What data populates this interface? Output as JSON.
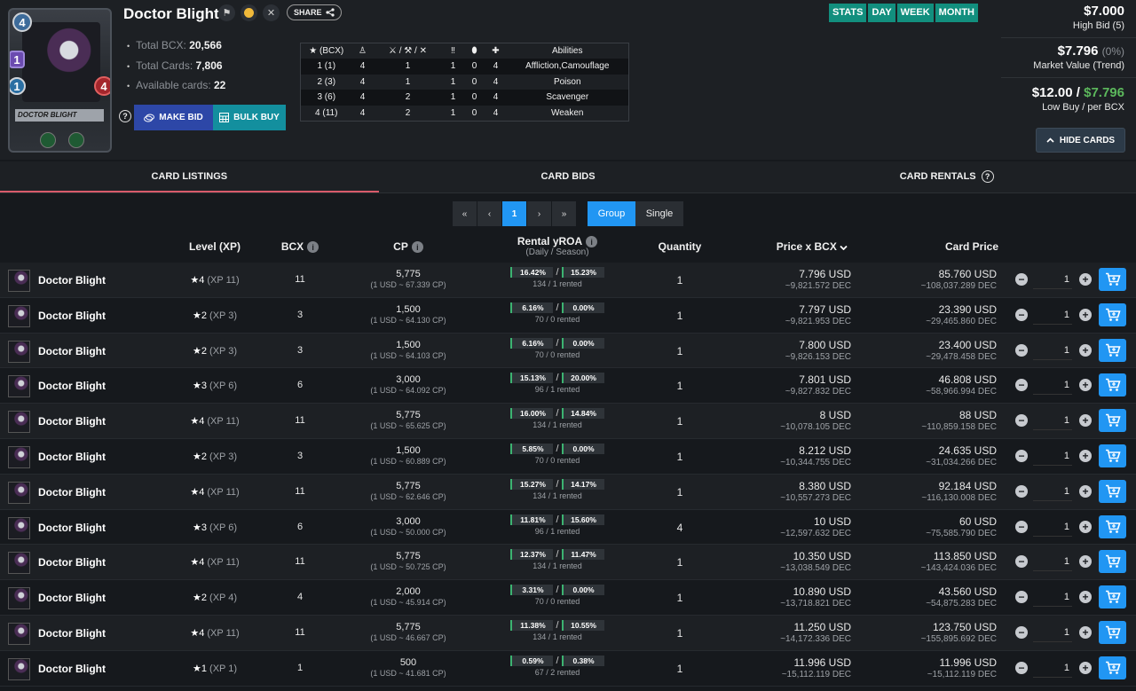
{
  "card": {
    "name": "Doctor Blight",
    "image_label": "DOCTOR BLIGHT",
    "mana": "4",
    "speed": "1",
    "armor": "1",
    "health": "4",
    "level_badge": "1"
  },
  "header": {
    "share_label": "SHARE",
    "stats": [
      {
        "label": "Total BCX:",
        "value": "20,566"
      },
      {
        "label": "Total Cards:",
        "value": "7,806"
      },
      {
        "label": "Available cards:",
        "value": "22"
      }
    ],
    "make_bid_label": "MAKE BID",
    "bulk_buy_label": "BULK BUY",
    "help_glyph": "?"
  },
  "level_table": {
    "headers": [
      "(BCX)",
      "Abilities"
    ],
    "rows": [
      {
        "level": "1 (1)",
        "a": "4",
        "b": "1",
        "c": "1",
        "d": "0",
        "e": "4",
        "ability": "Affliction,Camouflage"
      },
      {
        "level": "2 (3)",
        "a": "4",
        "b": "1",
        "c": "1",
        "d": "0",
        "e": "4",
        "ability": "Poison"
      },
      {
        "level": "3 (6)",
        "a": "4",
        "b": "2",
        "c": "1",
        "d": "0",
        "e": "4",
        "ability": "Scavenger"
      },
      {
        "level": "4 (11)",
        "a": "4",
        "b": "2",
        "c": "1",
        "d": "0",
        "e": "4",
        "ability": "Weaken"
      }
    ]
  },
  "periods": [
    "STATS",
    "DAY",
    "WEEK",
    "MONTH"
  ],
  "market": {
    "high_bid": "$7.000",
    "high_bid_label": "High Bid (5)",
    "market_value": "$7.796",
    "market_change": "(0%)",
    "market_value_label": "Market Value (Trend)",
    "low_buy": "$12.00",
    "per_bcx": "$7.796",
    "low_buy_label": "Low Buy / per BCX",
    "hide_cards_label": "HIDE CARDS"
  },
  "tabs": [
    "CARD LISTINGS",
    "CARD BIDS",
    "CARD RENTALS"
  ],
  "pager": {
    "first": "«",
    "prev": "‹",
    "current": "1",
    "next": "›",
    "last": "»"
  },
  "view_modes": [
    "Group",
    "Single"
  ],
  "columns": {
    "level": "Level (XP)",
    "bcx": "BCX",
    "cp": "CP",
    "roa": "Rental yROA",
    "roa_sub": "(Daily / Season)",
    "quantity": "Quantity",
    "price": "Price x BCX",
    "card_price": "Card Price"
  },
  "listings": [
    {
      "name": "Doctor Blight",
      "level": "4",
      "xp": "(XP 11)",
      "bcx": "11",
      "cp": "5,775",
      "cp_rate": "(1 USD ~ 67.339 CP)",
      "daily": "16.42%",
      "season": "15.23%",
      "rented": "134 / 1 rented",
      "qty": "1",
      "price": "7.796 USD",
      "price_dec": "~9,821.572 DEC",
      "card_price": "85.760 USD",
      "card_dec": "~108,037.289 DEC",
      "buy_qty": "1"
    },
    {
      "name": "Doctor Blight",
      "level": "2",
      "xp": "(XP 3)",
      "bcx": "3",
      "cp": "1,500",
      "cp_rate": "(1 USD ~ 64.130 CP)",
      "daily": "6.16%",
      "season": "0.00%",
      "rented": "70 / 0 rented",
      "qty": "1",
      "price": "7.797 USD",
      "price_dec": "~9,821.953 DEC",
      "card_price": "23.390 USD",
      "card_dec": "~29,465.860 DEC",
      "buy_qty": "1"
    },
    {
      "name": "Doctor Blight",
      "level": "2",
      "xp": "(XP 3)",
      "bcx": "3",
      "cp": "1,500",
      "cp_rate": "(1 USD ~ 64.103 CP)",
      "daily": "6.16%",
      "season": "0.00%",
      "rented": "70 / 0 rented",
      "qty": "1",
      "price": "7.800 USD",
      "price_dec": "~9,826.153 DEC",
      "card_price": "23.400 USD",
      "card_dec": "~29,478.458 DEC",
      "buy_qty": "1"
    },
    {
      "name": "Doctor Blight",
      "level": "3",
      "xp": "(XP 6)",
      "bcx": "6",
      "cp": "3,000",
      "cp_rate": "(1 USD ~ 64.092 CP)",
      "daily": "15.13%",
      "season": "20.00%",
      "rented": "96 / 1 rented",
      "qty": "1",
      "price": "7.801 USD",
      "price_dec": "~9,827.832 DEC",
      "card_price": "46.808 USD",
      "card_dec": "~58,966.994 DEC",
      "buy_qty": "1"
    },
    {
      "name": "Doctor Blight",
      "level": "4",
      "xp": "(XP 11)",
      "bcx": "11",
      "cp": "5,775",
      "cp_rate": "(1 USD ~ 65.625 CP)",
      "daily": "16.00%",
      "season": "14.84%",
      "rented": "134 / 1 rented",
      "qty": "1",
      "price": "8 USD",
      "price_dec": "~10,078.105 DEC",
      "card_price": "88 USD",
      "card_dec": "~110,859.158 DEC",
      "buy_qty": "1"
    },
    {
      "name": "Doctor Blight",
      "level": "2",
      "xp": "(XP 3)",
      "bcx": "3",
      "cp": "1,500",
      "cp_rate": "(1 USD ~ 60.889 CP)",
      "daily": "5.85%",
      "season": "0.00%",
      "rented": "70 / 0 rented",
      "qty": "1",
      "price": "8.212 USD",
      "price_dec": "~10,344.755 DEC",
      "card_price": "24.635 USD",
      "card_dec": "~31,034.266 DEC",
      "buy_qty": "1"
    },
    {
      "name": "Doctor Blight",
      "level": "4",
      "xp": "(XP 11)",
      "bcx": "11",
      "cp": "5,775",
      "cp_rate": "(1 USD ~ 62.646 CP)",
      "daily": "15.27%",
      "season": "14.17%",
      "rented": "134 / 1 rented",
      "qty": "1",
      "price": "8.380 USD",
      "price_dec": "~10,557.273 DEC",
      "card_price": "92.184 USD",
      "card_dec": "~116,130.008 DEC",
      "buy_qty": "1"
    },
    {
      "name": "Doctor Blight",
      "level": "3",
      "xp": "(XP 6)",
      "bcx": "6",
      "cp": "3,000",
      "cp_rate": "(1 USD ~ 50.000 CP)",
      "daily": "11.81%",
      "season": "15.60%",
      "rented": "96 / 1 rented",
      "qty": "4",
      "price": "10 USD",
      "price_dec": "~12,597.632 DEC",
      "card_price": "60 USD",
      "card_dec": "~75,585.790 DEC",
      "buy_qty": "1"
    },
    {
      "name": "Doctor Blight",
      "level": "4",
      "xp": "(XP 11)",
      "bcx": "11",
      "cp": "5,775",
      "cp_rate": "(1 USD ~ 50.725 CP)",
      "daily": "12.37%",
      "season": "11.47%",
      "rented": "134 / 1 rented",
      "qty": "1",
      "price": "10.350 USD",
      "price_dec": "~13,038.549 DEC",
      "card_price": "113.850 USD",
      "card_dec": "~143,424.036 DEC",
      "buy_qty": "1"
    },
    {
      "name": "Doctor Blight",
      "level": "2",
      "xp": "(XP 4)",
      "bcx": "4",
      "cp": "2,000",
      "cp_rate": "(1 USD ~ 45.914 CP)",
      "daily": "3.31%",
      "season": "0.00%",
      "rented": "70 / 0 rented",
      "qty": "1",
      "price": "10.890 USD",
      "price_dec": "~13,718.821 DEC",
      "card_price": "43.560 USD",
      "card_dec": "~54,875.283 DEC",
      "buy_qty": "1"
    },
    {
      "name": "Doctor Blight",
      "level": "4",
      "xp": "(XP 11)",
      "bcx": "11",
      "cp": "5,775",
      "cp_rate": "(1 USD ~ 46.667 CP)",
      "daily": "11.38%",
      "season": "10.55%",
      "rented": "134 / 1 rented",
      "qty": "1",
      "price": "11.250 USD",
      "price_dec": "~14,172.336 DEC",
      "card_price": "123.750 USD",
      "card_dec": "~155,895.692 DEC",
      "buy_qty": "1"
    },
    {
      "name": "Doctor Blight",
      "level": "1",
      "xp": "(XP 1)",
      "bcx": "1",
      "cp": "500",
      "cp_rate": "(1 USD ~ 41.681 CP)",
      "daily": "0.59%",
      "season": "0.38%",
      "rented": "67 / 2 rented",
      "qty": "1",
      "price": "11.996 USD",
      "price_dec": "~15,112.119 DEC",
      "card_price": "11.996 USD",
      "card_dec": "~15,112.119 DEC",
      "buy_qty": "1"
    }
  ],
  "colors": {
    "accent_blue": "#2196f3",
    "teal": "#128f7e",
    "green_value": "#5cb85c",
    "tab_underline": "#d95b6a"
  }
}
